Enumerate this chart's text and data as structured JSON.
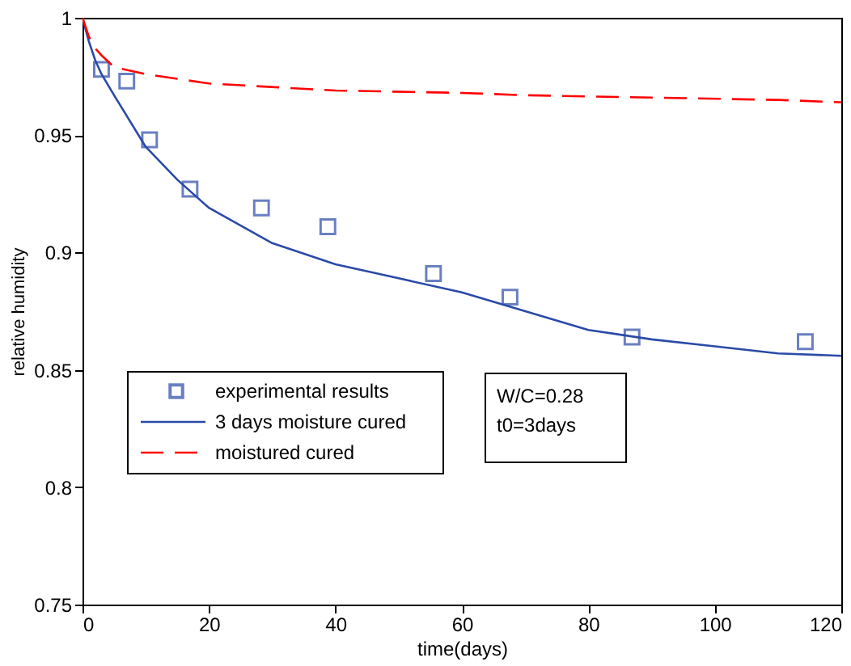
{
  "chart_data": {
    "type": "line",
    "xlabel": "time(days)",
    "ylabel": "relative humidity",
    "xlim": [
      0,
      120
    ],
    "ylim": [
      0.75,
      1
    ],
    "xticks": [
      0,
      20,
      40,
      60,
      80,
      100,
      120
    ],
    "yticks": [
      0.75,
      0.8,
      0.85,
      0.9,
      0.95,
      1
    ],
    "grid": false,
    "legend": "bottom left",
    "annotations": [
      "W/C=0.28",
      "t0=3days"
    ],
    "series": [
      {
        "name": "experimental results",
        "type": "scatter",
        "marker": "square",
        "color": "#2b4aa8",
        "x": [
          3,
          7,
          10.6,
          17,
          28.3,
          38.8,
          55.5,
          67.6,
          86.9,
          114.3
        ],
        "values": [
          0.978,
          0.973,
          0.948,
          0.927,
          0.919,
          0.911,
          0.891,
          0.881,
          0.864,
          0.862
        ]
      },
      {
        "name": "3 days moisture cured",
        "type": "line",
        "line_style": "solid",
        "color": "#2b4aa8",
        "x": [
          0,
          1,
          2,
          3,
          5,
          10,
          15,
          20,
          30,
          40,
          50,
          60,
          70,
          80,
          90,
          100,
          110,
          120
        ],
        "values": [
          1,
          0.99,
          0.982,
          0.976,
          0.967,
          0.945,
          0.931,
          0.919,
          0.904,
          0.895,
          0.889,
          0.883,
          0.875,
          0.867,
          0.863,
          0.86,
          0.857,
          0.856
        ]
      },
      {
        "name": "moistured cured",
        "type": "line",
        "line_style": "dashed",
        "color": "#ff0000",
        "x": [
          0,
          1,
          2,
          3,
          5,
          10,
          15,
          20,
          40,
          60,
          70,
          90,
          110,
          120
        ],
        "values": [
          1,
          0.992,
          0.987,
          0.984,
          0.979,
          0.976,
          0.974,
          0.972,
          0.969,
          0.968,
          0.967,
          0.966,
          0.965,
          0.964
        ]
      }
    ]
  }
}
